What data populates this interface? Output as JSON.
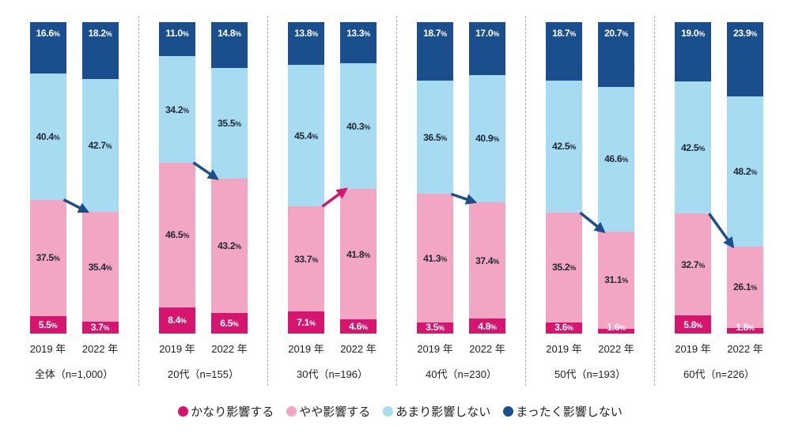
{
  "legend": [
    {
      "label": "かなり影響する",
      "color": "#d5156e"
    },
    {
      "label": "やや影響する",
      "color": "#f2a6c4"
    },
    {
      "label": "あまり影響しない",
      "color": "#a6dbf2"
    },
    {
      "label": "まったく影響しない",
      "color": "#1a4e8c"
    }
  ],
  "chart_data": {
    "type": "bar",
    "stacked": true,
    "value_suffix": "%",
    "ylim": [
      0,
      100
    ],
    "series": [
      "かなり影響する",
      "やや影響する",
      "あまり影響しない",
      "まったく影響しない"
    ],
    "series_colors": [
      "#d5156e",
      "#f2a6c4",
      "#a6dbf2",
      "#1a4e8c"
    ],
    "series_order": "bottom_to_top",
    "label_text_colors": [
      "#ffffff",
      "#1f2733",
      "#1f2733",
      "#ffffff"
    ],
    "groups": [
      {
        "label": "全体（n=1,000）",
        "bars": [
          {
            "label": "2019 年",
            "values": [
              5.5,
              37.5,
              40.4,
              16.6
            ]
          },
          {
            "label": "2022 年",
            "values": [
              3.7,
              35.4,
              42.7,
              18.2
            ]
          }
        ],
        "arrow": {
          "direction": "down",
          "color": "#1d4e89"
        }
      },
      {
        "label": "20代（n=155）",
        "bars": [
          {
            "label": "2019 年",
            "values": [
              8.4,
              46.5,
              34.2,
              11.0
            ]
          },
          {
            "label": "2022 年",
            "values": [
              6.5,
              43.2,
              35.5,
              14.8
            ]
          }
        ],
        "arrow": {
          "direction": "down",
          "color": "#1d4e89"
        }
      },
      {
        "label": "30代（n=196）",
        "bars": [
          {
            "label": "2019 年",
            "values": [
              7.1,
              33.7,
              45.4,
              13.8
            ]
          },
          {
            "label": "2022 年",
            "values": [
              4.6,
              41.8,
              40.3,
              13.3
            ]
          }
        ],
        "arrow": {
          "direction": "up",
          "color": "#d5156e"
        }
      },
      {
        "label": "40代（n=230）",
        "bars": [
          {
            "label": "2019 年",
            "values": [
              3.5,
              41.3,
              36.5,
              18.7
            ]
          },
          {
            "label": "2022 年",
            "values": [
              4.8,
              37.4,
              40.9,
              17.0
            ]
          }
        ],
        "arrow": {
          "direction": "down",
          "color": "#1d4e89"
        }
      },
      {
        "label": "50代（n=193）",
        "bars": [
          {
            "label": "2019 年",
            "values": [
              3.6,
              35.2,
              42.5,
              18.7
            ]
          },
          {
            "label": "2022 年",
            "values": [
              1.6,
              31.1,
              46.6,
              20.7
            ]
          }
        ],
        "arrow": {
          "direction": "down",
          "color": "#1d4e89"
        }
      },
      {
        "label": "60代（n=226）",
        "bars": [
          {
            "label": "2019 年",
            "values": [
              5.8,
              32.7,
              42.5,
              19.0
            ]
          },
          {
            "label": "2022 年",
            "values": [
              1.8,
              26.1,
              48.2,
              23.9
            ]
          }
        ],
        "arrow": {
          "direction": "down",
          "color": "#1d4e89"
        }
      }
    ]
  }
}
